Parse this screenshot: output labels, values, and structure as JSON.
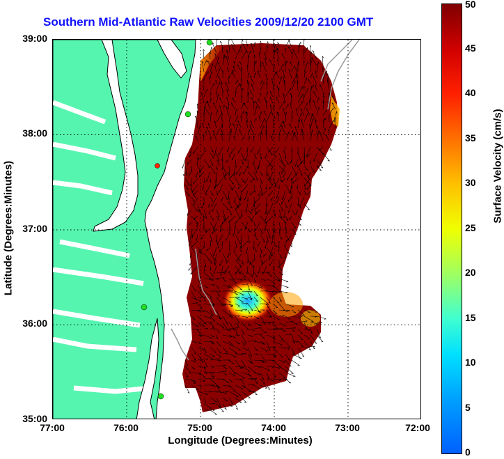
{
  "title": "Southern Mid-Atlantic Raw Velocities 2009/12/20 2100 GMT",
  "xaxis": {
    "label": "Longitude (Degrees:Minutes)",
    "ticks": [
      "77:00",
      "76:00",
      "75:00",
      "74:00",
      "73:00",
      "72:00"
    ]
  },
  "yaxis": {
    "label": "Latitude (Degrees:Minutes)",
    "ticks": [
      "39:00",
      "38:00",
      "37:00",
      "36:00",
      "35:00"
    ]
  },
  "colorbar": {
    "label": "Surface Velocity (cm/s)",
    "ticks": [
      "50",
      "45",
      "40",
      "35",
      "30",
      "25",
      "20",
      "15",
      "10",
      "5",
      "0"
    ]
  },
  "colors": {
    "land": "#55f5b0",
    "title": "#1010ff",
    "water": "#ffffff",
    "high_velocity": "#8b0000",
    "station_green": "#22dd22",
    "station_red": "#ff2200"
  },
  "extent": {
    "lon": [
      -77,
      -72
    ],
    "lat": [
      35,
      39
    ]
  }
}
